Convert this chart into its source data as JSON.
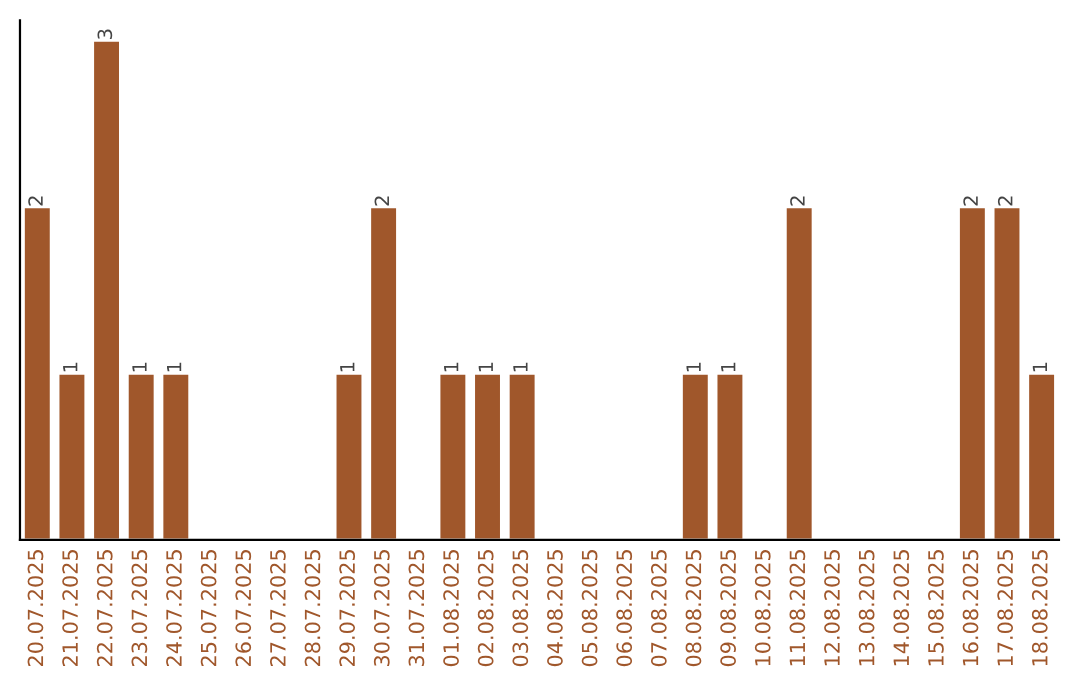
{
  "chart_data": {
    "type": "bar",
    "categories": [
      "20.07.2025",
      "21.07.2025",
      "22.07.2025",
      "23.07.2025",
      "24.07.2025",
      "25.07.2025",
      "26.07.2025",
      "27.07.2025",
      "28.07.2025",
      "29.07.2025",
      "30.07.2025",
      "31.07.2025",
      "01.08.2025",
      "02.08.2025",
      "03.08.2025",
      "04.08.2025",
      "05.08.2025",
      "06.08.2025",
      "07.08.2025",
      "08.08.2025",
      "09.08.2025",
      "10.08.2025",
      "11.08.2025",
      "12.08.2025",
      "13.08.2025",
      "14.08.2025",
      "15.08.2025",
      "16.08.2025",
      "17.08.2025",
      "18.08.2025"
    ],
    "values": [
      2,
      1,
      3,
      1,
      1,
      null,
      null,
      null,
      null,
      1,
      2,
      null,
      1,
      1,
      1,
      null,
      null,
      null,
      null,
      1,
      1,
      null,
      2,
      null,
      null,
      null,
      null,
      2,
      2,
      1
    ],
    "value_labels": [
      "2",
      "1",
      "3",
      "1",
      "1",
      null,
      null,
      null,
      null,
      "1",
      "2",
      null,
      "1",
      "1",
      "1",
      null,
      null,
      null,
      null,
      "1",
      "1",
      null,
      "2",
      null,
      null,
      null,
      null,
      "2",
      "2",
      "1"
    ],
    "color": "#a0572b",
    "ylim": [
      0,
      3.12
    ],
    "tick_labels": "x",
    "grid": false,
    "legend": false
  }
}
